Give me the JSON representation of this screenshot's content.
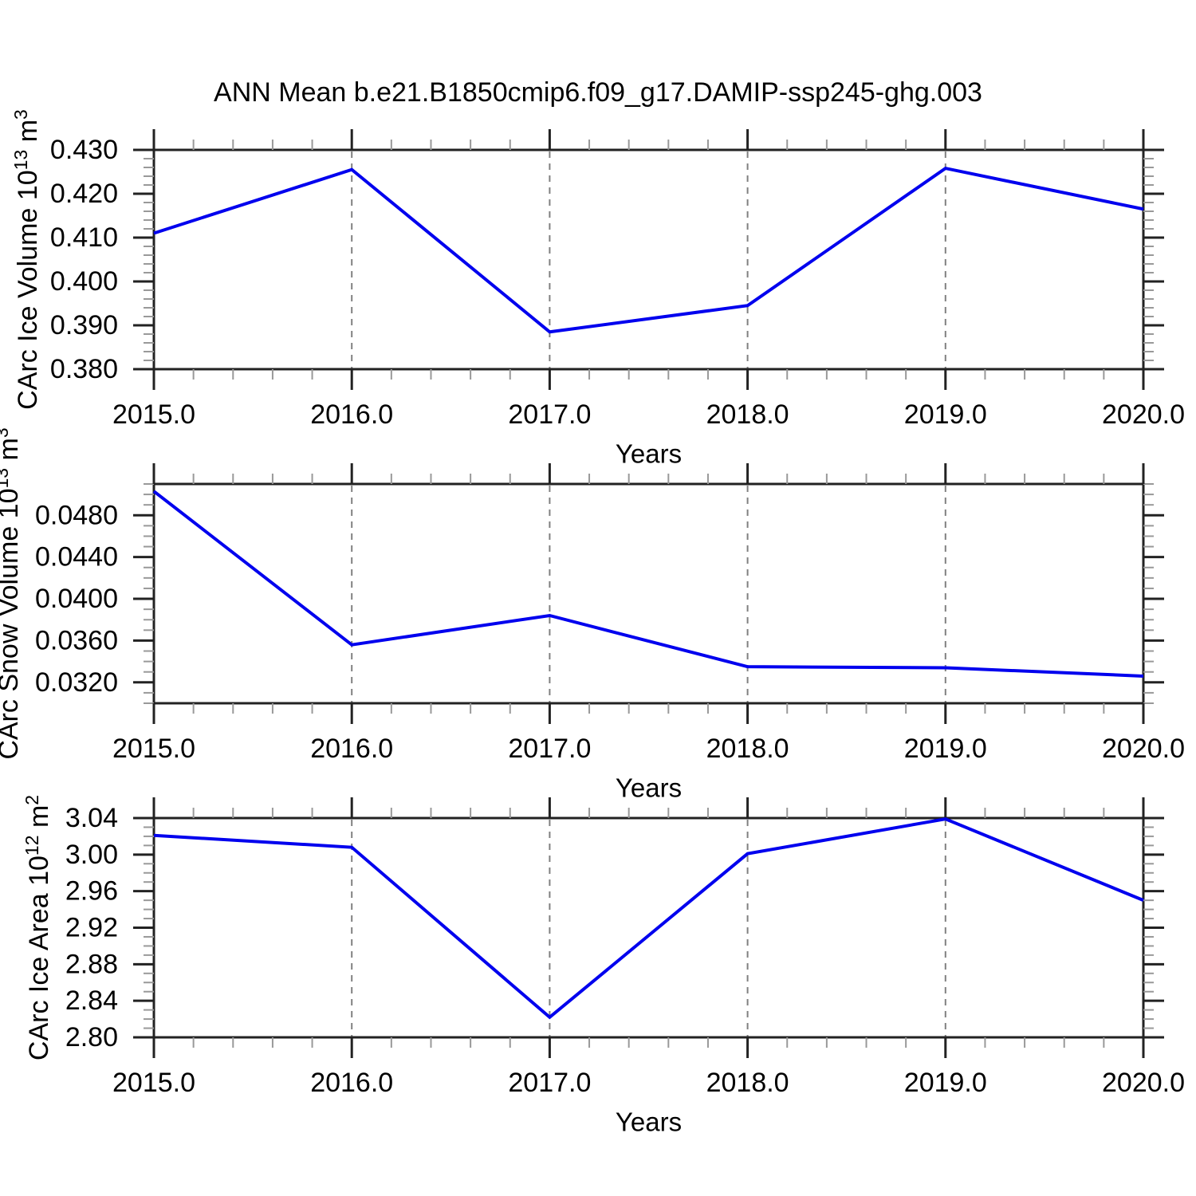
{
  "title": "ANN Mean b.e21.B1850cmip6.f09_g17.DAMIP-ssp245-ghg.003",
  "colors": {
    "line": "#0000EE",
    "frame": "#222222",
    "major_tick": "#222222",
    "minor_tick": "#999999",
    "grid": "#808080",
    "text": "#000000",
    "background": "#FFFFFF"
  },
  "chart_data": [
    {
      "type": "line",
      "series_name": "CArc Ice Volume",
      "ylabel_text": "CArc Ice Volume 10^13 m^3",
      "ylabel_parts": [
        {
          "t": "CArc Ice Volume 10"
        },
        {
          "t": "13",
          "sup": true
        },
        {
          "t": " m"
        },
        {
          "t": "3",
          "sup": true
        }
      ],
      "xlabel": "Years",
      "x": [
        2015,
        2016,
        2017,
        2018,
        2019,
        2020
      ],
      "values": [
        0.411,
        0.4255,
        0.3885,
        0.3945,
        0.4258,
        0.4165
      ],
      "xlim": [
        2015,
        2020
      ],
      "ylim": [
        0.38,
        0.43
      ],
      "yticks": [
        0.38,
        0.39,
        0.4,
        0.41,
        0.42,
        0.43
      ],
      "ytick_labels": [
        "0.380",
        "0.390",
        "0.400",
        "0.410",
        "0.420",
        "0.430"
      ],
      "yminor_step": 0.002,
      "xtick_labels": [
        "2015.0",
        "2016.0",
        "2017.0",
        "2018.0",
        "2019.0",
        "2020.0"
      ],
      "xminor_step": 0.2,
      "grid_x": [
        2016,
        2017,
        2018,
        2019
      ],
      "grid_style": "dashed-vertical",
      "legend": "none"
    },
    {
      "type": "line",
      "series_name": "CArc Snow Volume",
      "ylabel_text": "CArc Snow Volume 10^13 m^3",
      "ylabel_parts": [
        {
          "t": "CArc Snow Volume 10"
        },
        {
          "t": "13",
          "sup": true
        },
        {
          "t": " m"
        },
        {
          "t": "3",
          "sup": true
        }
      ],
      "xlabel": "Years",
      "x": [
        2015,
        2016,
        2017,
        2018,
        2019,
        2020
      ],
      "values": [
        0.0503,
        0.0356,
        0.0384,
        0.0335,
        0.0334,
        0.0326
      ],
      "xlim": [
        2015,
        2020
      ],
      "ylim": [
        0.03,
        0.051
      ],
      "yticks": [
        0.032,
        0.036,
        0.04,
        0.044,
        0.048
      ],
      "ytick_labels": [
        "0.0320",
        "0.0360",
        "0.0400",
        "0.0440",
        "0.0480"
      ],
      "yminor_step": 0.001,
      "xtick_labels": [
        "2015.0",
        "2016.0",
        "2017.0",
        "2018.0",
        "2019.0",
        "2020.0"
      ],
      "xminor_step": 0.2,
      "grid_x": [
        2016,
        2017,
        2018,
        2019
      ],
      "grid_style": "dashed-vertical",
      "legend": "none"
    },
    {
      "type": "line",
      "series_name": "CArc Ice Area",
      "ylabel_text": "CArc Ice Area 10^12 m^2",
      "ylabel_parts": [
        {
          "t": "CArc Ice Area 10"
        },
        {
          "t": "12",
          "sup": true
        },
        {
          "t": " m"
        },
        {
          "t": "2",
          "sup": true
        }
      ],
      "xlabel": "Years",
      "x": [
        2015,
        2016,
        2017,
        2018,
        2019,
        2020
      ],
      "values": [
        3.021,
        3.008,
        2.822,
        3.001,
        3.039,
        2.95
      ],
      "xlim": [
        2015,
        2020
      ],
      "ylim": [
        2.8,
        3.04
      ],
      "yticks": [
        2.8,
        2.84,
        2.88,
        2.92,
        2.96,
        3.0,
        3.04
      ],
      "ytick_labels": [
        "2.80",
        "2.84",
        "2.88",
        "2.92",
        "2.96",
        "3.00",
        "3.04"
      ],
      "yminor_step": 0.01,
      "xtick_labels": [
        "2015.0",
        "2016.0",
        "2017.0",
        "2018.0",
        "2019.0",
        "2020.0"
      ],
      "xminor_step": 0.2,
      "grid_x": [
        2016,
        2017,
        2018,
        2019
      ],
      "grid_style": "dashed-vertical",
      "legend": "none"
    }
  ]
}
